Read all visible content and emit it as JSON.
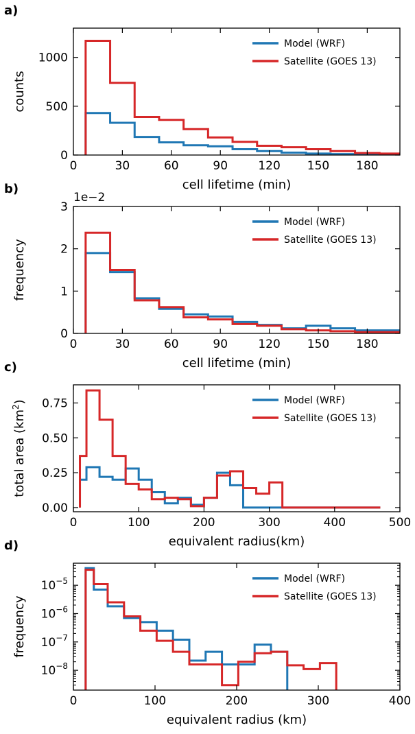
{
  "colors": {
    "model": "#1f77b4",
    "satellite": "#d62728"
  },
  "chart_data": [
    {
      "panel_label": "a)",
      "type": "line",
      "step": true,
      "xlabel": "cell lifetime (min)",
      "ylabel": "counts",
      "xlim": [
        0,
        200
      ],
      "ylim": [
        0,
        1300
      ],
      "xticks": [
        0,
        30,
        60,
        90,
        120,
        150,
        180
      ],
      "yticks": [
        0,
        500,
        1000
      ],
      "ytick_labels": [
        "0",
        "500",
        "1000"
      ],
      "legend": {
        "placement": "top-right"
      },
      "series": [
        {
          "name": "Model (WRF)",
          "color": "#1f77b4",
          "edges": [
            7.5,
            22.5,
            37.5,
            52.5,
            67.5,
            82.5,
            97.5,
            112.5,
            127.5,
            142.5,
            157.5,
            172.5,
            187.5,
            202.5
          ],
          "values": [
            430,
            330,
            185,
            130,
            100,
            90,
            60,
            40,
            25,
            15,
            10,
            5,
            5
          ]
        },
        {
          "name": "Satellite (GOES 13)",
          "color": "#d62728",
          "edges": [
            7.5,
            22.5,
            37.5,
            52.5,
            67.5,
            82.5,
            97.5,
            112.5,
            127.5,
            142.5,
            157.5,
            172.5,
            187.5,
            202.5
          ],
          "values": [
            1170,
            740,
            390,
            360,
            265,
            180,
            135,
            95,
            80,
            60,
            40,
            20,
            15
          ]
        }
      ]
    },
    {
      "panel_label": "b)",
      "type": "line",
      "step": true,
      "xlabel": "cell lifetime (min)",
      "ylabel": "frequency",
      "offset_text": "1e−2",
      "xlim": [
        0,
        200
      ],
      "ylim": [
        0,
        3
      ],
      "xticks": [
        0,
        30,
        60,
        90,
        120,
        150,
        180
      ],
      "yticks": [
        0,
        1,
        2,
        3
      ],
      "ytick_labels": [
        "0",
        "1",
        "2",
        "3"
      ],
      "legend": {
        "placement": "top-right"
      },
      "series": [
        {
          "name": "Model (WRF)",
          "color": "#1f77b4",
          "edges": [
            7.5,
            22.5,
            37.5,
            52.5,
            67.5,
            82.5,
            97.5,
            112.5,
            127.5,
            142.5,
            157.5,
            172.5,
            187.5,
            202.5
          ],
          "values": [
            1.9,
            1.45,
            0.83,
            0.58,
            0.45,
            0.4,
            0.27,
            0.2,
            0.12,
            0.18,
            0.12,
            0.07,
            0.07
          ]
        },
        {
          "name": "Satellite (GOES 13)",
          "color": "#d62728",
          "edges": [
            7.5,
            22.5,
            37.5,
            52.5,
            67.5,
            82.5,
            97.5,
            112.5,
            127.5,
            142.5,
            157.5,
            172.5,
            187.5,
            202.5
          ],
          "values": [
            2.38,
            1.5,
            0.78,
            0.62,
            0.38,
            0.33,
            0.22,
            0.18,
            0.1,
            0.07,
            0.05,
            0.03,
            0.03
          ]
        }
      ]
    },
    {
      "panel_label": "c)",
      "type": "line",
      "step": true,
      "xlabel": "equivalent radius(km)",
      "ylabel": "total area (km²)",
      "xlim": [
        0,
        500
      ],
      "ylim": [
        -0.03,
        0.88
      ],
      "xticks": [
        0,
        100,
        200,
        300,
        400,
        500
      ],
      "yticks": [
        0,
        0.25,
        0.5,
        0.75
      ],
      "ytick_labels": [
        "0.00",
        "0.25",
        "0.50",
        "0.75"
      ],
      "legend": {
        "placement": "top-right"
      },
      "series": [
        {
          "name": "Model (WRF)",
          "color": "#1f77b4",
          "edges": [
            10,
            20,
            40,
            60,
            80,
            100,
            120,
            140,
            160,
            180,
            200,
            220,
            240,
            260,
            280,
            300,
            320,
            340,
            360,
            380,
            400,
            420,
            440,
            460,
            470
          ],
          "values": [
            0.2,
            0.29,
            0.22,
            0.2,
            0.28,
            0.2,
            0.11,
            0.03,
            0.07,
            0.02,
            0.07,
            0.25,
            0.16,
            0,
            0,
            0,
            0,
            0,
            0,
            0,
            0,
            0,
            0,
            0
          ]
        },
        {
          "name": "Satellite (GOES 13)",
          "color": "#d62728",
          "edges": [
            10,
            20,
            40,
            60,
            80,
            100,
            120,
            140,
            160,
            180,
            200,
            220,
            240,
            260,
            280,
            300,
            320,
            340,
            360,
            380,
            400,
            420,
            440,
            460,
            470
          ],
          "values": [
            0.37,
            0.84,
            0.63,
            0.37,
            0.17,
            0.13,
            0.06,
            0.07,
            0.06,
            0.01,
            0.07,
            0.23,
            0.26,
            0.14,
            0.1,
            0.18,
            0,
            0,
            0,
            0,
            0,
            0,
            0,
            0
          ]
        }
      ]
    },
    {
      "panel_label": "d)",
      "type": "line",
      "step": true,
      "xlabel": "equivalent radius (km)",
      "ylabel": "frequency",
      "log_y": true,
      "xlim": [
        0,
        400
      ],
      "ylim": [
        2e-09,
        6e-05
      ],
      "xticks": [
        0,
        100,
        200,
        300,
        400
      ],
      "ytick_exponents": [
        -8,
        -7,
        -6,
        -5
      ],
      "legend": {
        "placement": "top-right"
      },
      "series": [
        {
          "name": "Model (WRF)",
          "color": "#1f77b4",
          "edges": [
            15,
            25,
            42,
            62,
            82,
            102,
            122,
            142,
            162,
            182,
            202,
            222,
            242,
            262
          ],
          "values": [
            4e-05,
            7e-06,
            1.8e-06,
            7e-07,
            5e-07,
            2.5e-07,
            1.2e-07,
            2.2e-08,
            4.5e-08,
            1.6e-08,
            1.6e-08,
            8e-08,
            4.5e-08
          ]
        },
        {
          "name": "Satellite (GOES 13)",
          "color": "#d62728",
          "edges": [
            15,
            25,
            42,
            62,
            82,
            102,
            122,
            142,
            162,
            182,
            202,
            222,
            242,
            262,
            282,
            302,
            322
          ],
          "values": [
            3.5e-05,
            1.1e-05,
            2.5e-06,
            8e-07,
            2.5e-07,
            1.1e-07,
            4.5e-08,
            1.6e-08,
            1.6e-08,
            3e-09,
            2e-08,
            4e-08,
            4.5e-08,
            1.5e-08,
            1.1e-08,
            1.8e-08
          ]
        }
      ]
    }
  ]
}
